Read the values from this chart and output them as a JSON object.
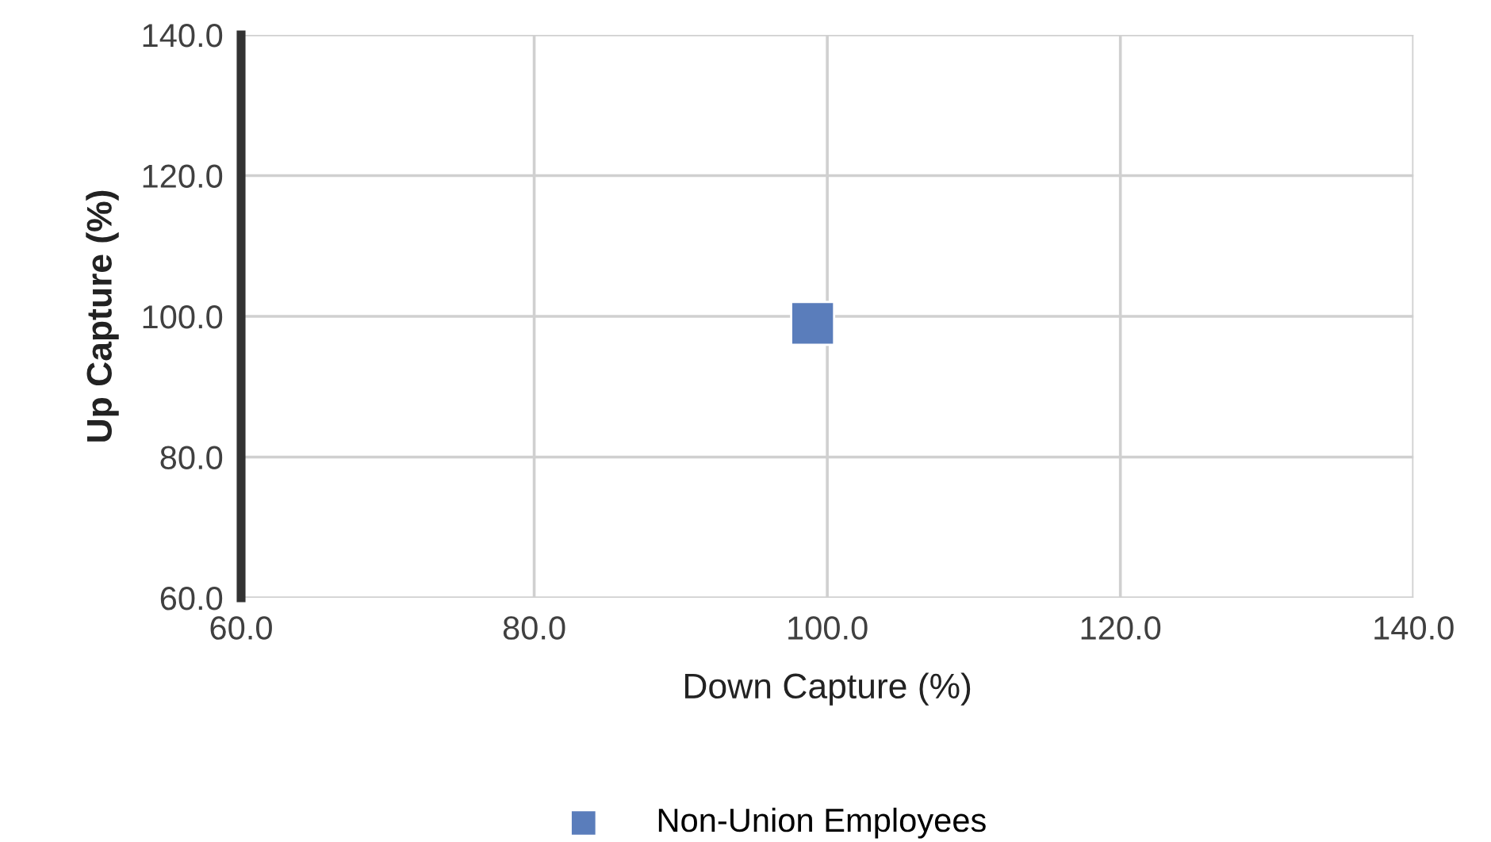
{
  "chart_data": {
    "type": "scatter",
    "xlabel": "Down Capture (%)",
    "ylabel": "Up Capture (%)",
    "x": [
      99.0
    ],
    "series": [
      {
        "name": "Non-Union Employees",
        "color": "#5a7dbb",
        "values": [
          99.0
        ]
      }
    ],
    "xlim": [
      60,
      140
    ],
    "ylim": [
      60,
      140
    ],
    "xticks": [
      {
        "value": 60,
        "label": "60.0"
      },
      {
        "value": 80,
        "label": "80.0"
      },
      {
        "value": 100,
        "label": "100.0"
      },
      {
        "value": 120,
        "label": "120.0"
      },
      {
        "value": 140,
        "label": "140.0"
      }
    ],
    "yticks": [
      {
        "value": 60,
        "label": "60.0"
      },
      {
        "value": 80,
        "label": "80.0"
      },
      {
        "value": 100,
        "label": "100.0"
      },
      {
        "value": 120,
        "label": "120.0"
      },
      {
        "value": 140,
        "label": "140.0"
      }
    ],
    "grid": true,
    "legend": "bottom",
    "marker": "square"
  }
}
